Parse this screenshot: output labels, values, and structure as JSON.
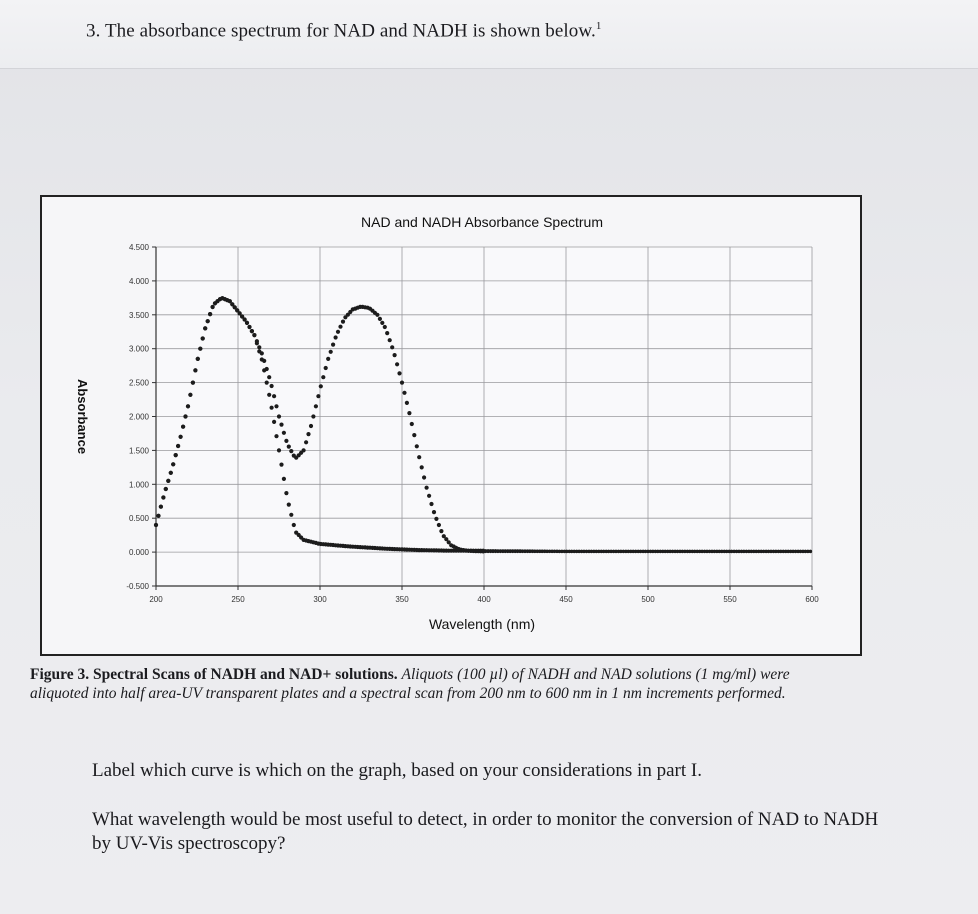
{
  "question_header": {
    "number": "3.",
    "text": "The absorbance spectrum for NAD and NADH is shown below.",
    "footnote": "1"
  },
  "chart_data": {
    "type": "scatter",
    "title": "NAD and NADH Absorbance Spectrum",
    "xlabel": "Wavelength (nm)",
    "ylabel": "Absorbance",
    "xlim": [
      200,
      600
    ],
    "ylim": [
      -0.5,
      4.5
    ],
    "x_ticks": [
      "200",
      "250",
      "300",
      "350",
      "400",
      "450",
      "500",
      "550",
      "600"
    ],
    "y_ticks": [
      "-0.500",
      "0.000",
      "0.500",
      "1.000",
      "1.500",
      "2.000",
      "2.500",
      "3.000",
      "3.500",
      "4.000",
      "4.500"
    ],
    "grid": true,
    "legend": "none",
    "series": [
      {
        "color": "#1c1c1c",
        "points": [
          [
            200,
            0.4
          ],
          [
            205,
            0.85
          ],
          [
            210,
            1.25
          ],
          [
            215,
            1.7
          ],
          [
            220,
            2.2
          ],
          [
            225,
            2.8
          ],
          [
            230,
            3.3
          ],
          [
            235,
            3.65
          ],
          [
            240,
            3.75
          ],
          [
            245,
            3.7
          ],
          [
            250,
            3.55
          ],
          [
            255,
            3.4
          ],
          [
            260,
            3.2
          ],
          [
            265,
            2.8
          ],
          [
            270,
            2.2
          ],
          [
            275,
            1.5
          ],
          [
            280,
            0.8
          ],
          [
            285,
            0.3
          ],
          [
            290,
            0.18
          ],
          [
            300,
            0.12
          ],
          [
            320,
            0.08
          ],
          [
            340,
            0.05
          ],
          [
            360,
            0.03
          ],
          [
            380,
            0.02
          ],
          [
            400,
            0.02
          ],
          [
            450,
            0.01
          ],
          [
            500,
            0.01
          ],
          [
            550,
            0.01
          ],
          [
            600,
            0.01
          ]
        ]
      },
      {
        "color": "#1c1c1c",
        "points": [
          [
            200,
            0.4
          ],
          [
            205,
            0.85
          ],
          [
            210,
            1.25
          ],
          [
            215,
            1.7
          ],
          [
            220,
            2.2
          ],
          [
            225,
            2.8
          ],
          [
            230,
            3.3
          ],
          [
            235,
            3.65
          ],
          [
            240,
            3.75
          ],
          [
            245,
            3.7
          ],
          [
            250,
            3.55
          ],
          [
            255,
            3.4
          ],
          [
            260,
            3.2
          ],
          [
            265,
            2.9
          ],
          [
            270,
            2.5
          ],
          [
            275,
            2.0
          ],
          [
            280,
            1.6
          ],
          [
            285,
            1.38
          ],
          [
            290,
            1.5
          ],
          [
            295,
            1.9
          ],
          [
            300,
            2.4
          ],
          [
            305,
            2.85
          ],
          [
            310,
            3.2
          ],
          [
            315,
            3.45
          ],
          [
            320,
            3.58
          ],
          [
            325,
            3.62
          ],
          [
            330,
            3.6
          ],
          [
            335,
            3.5
          ],
          [
            340,
            3.3
          ],
          [
            345,
            2.95
          ],
          [
            350,
            2.5
          ],
          [
            355,
            2.0
          ],
          [
            360,
            1.45
          ],
          [
            365,
            0.95
          ],
          [
            370,
            0.55
          ],
          [
            375,
            0.25
          ],
          [
            380,
            0.1
          ],
          [
            385,
            0.04
          ],
          [
            390,
            0.02
          ],
          [
            400,
            0.01
          ],
          [
            450,
            0.01
          ],
          [
            500,
            0.01
          ],
          [
            550,
            0.01
          ],
          [
            600,
            0.01
          ]
        ]
      }
    ]
  },
  "caption": {
    "bold": "Figure 3. Spectral Scans of NADH and NAD+ solutions.",
    "italic": "Aliquots (100 µl) of NADH and NAD solutions (1 mg/ml) were aliquoted into half area-UV transparent plates and a spectral scan from 200 nm to 600 nm in 1 nm increments performed."
  },
  "questions": {
    "label_curve": "Label which curve is which on the graph, based on your considerations in part I.",
    "wavelength": "What wavelength would be most useful to detect, in order to monitor the conversion of NAD to NADH by UV-Vis spectroscopy?"
  }
}
